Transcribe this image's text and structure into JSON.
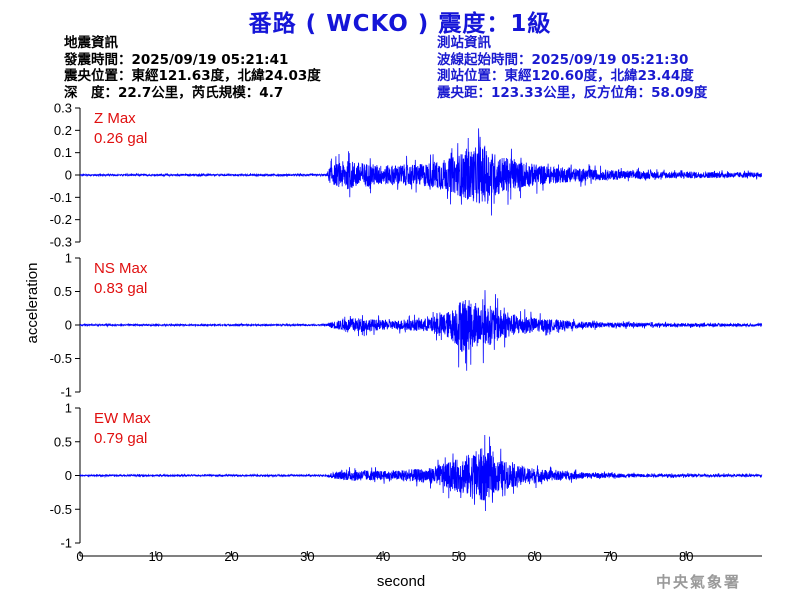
{
  "title": "番路 ( WCKO ) 震度：1級",
  "event_info": {
    "heading": "地震資訊",
    "origin_time": "發震時間：2025/09/19 05:21:41",
    "epicenter": "震央位置：東經121.63度，北緯24.03度",
    "depth_magnitude": "深　度：22.7公里，芮氏規模：4.7"
  },
  "station_info": {
    "heading": "測站資訊",
    "wave_start": "波線起始時間：2025/09/19 05:21:30",
    "station_location": "測站位置：東經120.60度，北緯23.44度",
    "distance_azimuth": "震央距：123.33公里，反方位角：58.09度"
  },
  "credit": "中央氣象署",
  "colors": {
    "title": "#1515d8",
    "trace": "#0000ff",
    "max_label": "#e01010",
    "station_info": "#1a1ad0"
  },
  "chart_data": {
    "type": "line",
    "xlabel": "second",
    "ylabel": "acceleration",
    "xlim": [
      0,
      90
    ],
    "xticks": [
      "0",
      "10",
      "20",
      "30",
      "40",
      "50",
      "60",
      "70",
      "80"
    ],
    "xtick_values": [
      0,
      10,
      20,
      30,
      40,
      50,
      60,
      70,
      80
    ],
    "panels": [
      {
        "component": "Z",
        "max_label": "Z Max",
        "max_value": "0.26 gal",
        "ylim": [
          -0.3,
          0.3
        ],
        "yticks": [
          "0.3",
          "0.2",
          "0.1",
          "0",
          "-0.1",
          "-0.2",
          "-0.3"
        ],
        "ytick_values": [
          0.3,
          0.2,
          0.1,
          0,
          -0.1,
          -0.2,
          -0.3
        ],
        "envelope": [
          {
            "t": 0,
            "a": 0.006
          },
          {
            "t": 32.5,
            "a": 0.007
          },
          {
            "t": 33,
            "a": 0.07
          },
          {
            "t": 35,
            "a": 0.12
          },
          {
            "t": 40,
            "a": 0.08
          },
          {
            "t": 45,
            "a": 0.09
          },
          {
            "t": 49,
            "a": 0.14
          },
          {
            "t": 51,
            "a": 0.2
          },
          {
            "t": 53,
            "a": 0.24
          },
          {
            "t": 55,
            "a": 0.17
          },
          {
            "t": 58,
            "a": 0.11
          },
          {
            "t": 62,
            "a": 0.07
          },
          {
            "t": 68,
            "a": 0.045
          },
          {
            "t": 75,
            "a": 0.03
          },
          {
            "t": 90,
            "a": 0.02
          }
        ]
      },
      {
        "component": "NS",
        "max_label": "NS Max",
        "max_value": "0.83 gal",
        "ylim": [
          -1,
          1
        ],
        "yticks": [
          "1",
          "0.5",
          "0",
          "-0.5",
          "-1"
        ],
        "ytick_values": [
          1,
          0.5,
          0,
          -0.5,
          -1
        ],
        "envelope": [
          {
            "t": 0,
            "a": 0.02
          },
          {
            "t": 32.5,
            "a": 0.02
          },
          {
            "t": 33,
            "a": 0.08
          },
          {
            "t": 36,
            "a": 0.2
          },
          {
            "t": 41,
            "a": 0.12
          },
          {
            "t": 46,
            "a": 0.18
          },
          {
            "t": 49,
            "a": 0.4
          },
          {
            "t": 50.5,
            "a": 0.78
          },
          {
            "t": 52,
            "a": 0.6
          },
          {
            "t": 54,
            "a": 0.55
          },
          {
            "t": 57,
            "a": 0.3
          },
          {
            "t": 61,
            "a": 0.17
          },
          {
            "t": 67,
            "a": 0.08
          },
          {
            "t": 75,
            "a": 0.05
          },
          {
            "t": 90,
            "a": 0.035
          }
        ]
      },
      {
        "component": "EW",
        "max_label": "EW Max",
        "max_value": "0.79 gal",
        "ylim": [
          -1,
          1
        ],
        "yticks": [
          "1",
          "0.5",
          "0",
          "-0.5",
          "-1"
        ],
        "ytick_values": [
          1,
          0.5,
          0,
          -0.5,
          -1
        ],
        "envelope": [
          {
            "t": 0,
            "a": 0.02
          },
          {
            "t": 32.5,
            "a": 0.02
          },
          {
            "t": 33,
            "a": 0.07
          },
          {
            "t": 36,
            "a": 0.15
          },
          {
            "t": 41,
            "a": 0.12
          },
          {
            "t": 46,
            "a": 0.2
          },
          {
            "t": 49,
            "a": 0.38
          },
          {
            "t": 51,
            "a": 0.55
          },
          {
            "t": 53,
            "a": 0.75
          },
          {
            "t": 55,
            "a": 0.45
          },
          {
            "t": 58,
            "a": 0.26
          },
          {
            "t": 62,
            "a": 0.14
          },
          {
            "t": 68,
            "a": 0.07
          },
          {
            "t": 75,
            "a": 0.04
          },
          {
            "t": 90,
            "a": 0.03
          }
        ]
      }
    ]
  }
}
